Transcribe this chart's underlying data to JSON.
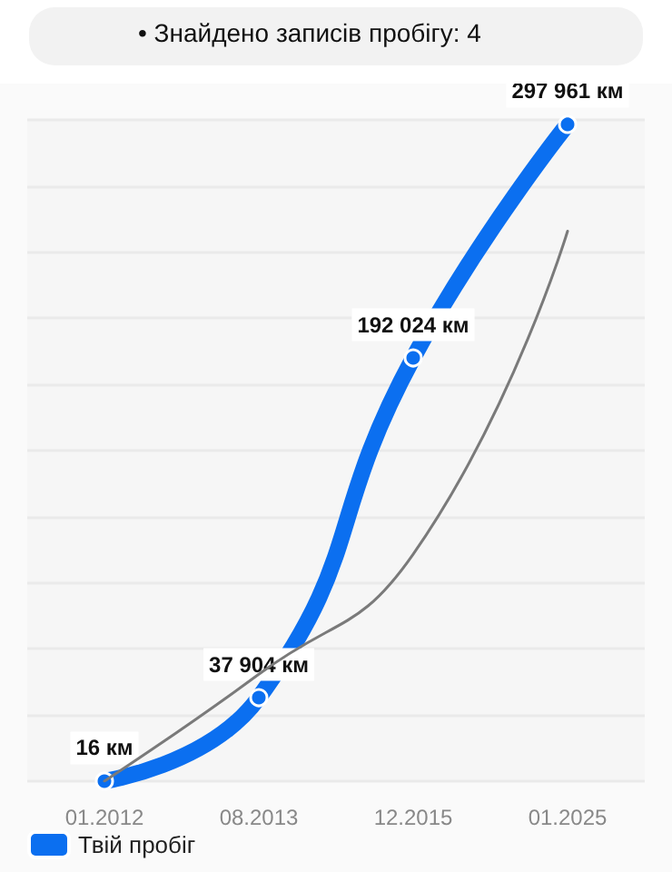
{
  "chart_data": {
    "type": "line",
    "annotations": [
      "• Знайдено записів пробігу: 4"
    ],
    "categories": [
      "01.2012",
      "08.2013",
      "12.2015",
      "01.2025"
    ],
    "series": [
      {
        "name": "Твій пробіг",
        "color": "#0b6ff0",
        "values": [
          16,
          37904,
          192024,
          297961
        ],
        "value_labels": [
          "16 км",
          "37 904 км",
          "192 024 км",
          "297 961 км"
        ]
      },
      {
        "color": "#7a7a7a",
        "values": [
          0,
          48500,
          103000,
          249500
        ],
        "marker": "none"
      }
    ],
    "grid": "y",
    "legend": "bottom left",
    "tick_labels": "x",
    "marker": "circle"
  }
}
